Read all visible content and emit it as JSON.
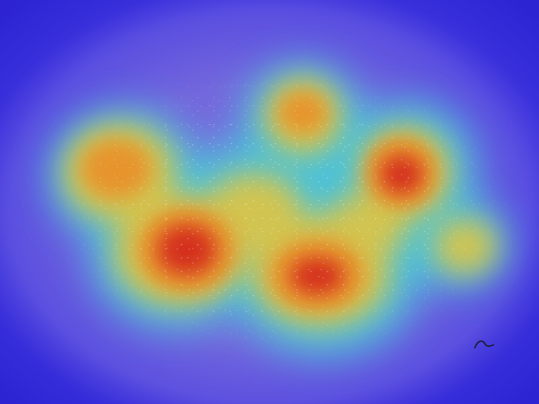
{
  "image": {
    "description_kind": "heatmap-overlay",
    "colors": {
      "background": "#6f63dc",
      "edge": "#2e2ad8",
      "cool": "#3fd0d8",
      "mid": "#e6c23a",
      "warm": "#e68a2a",
      "hot": "#d42a1e"
    }
  }
}
